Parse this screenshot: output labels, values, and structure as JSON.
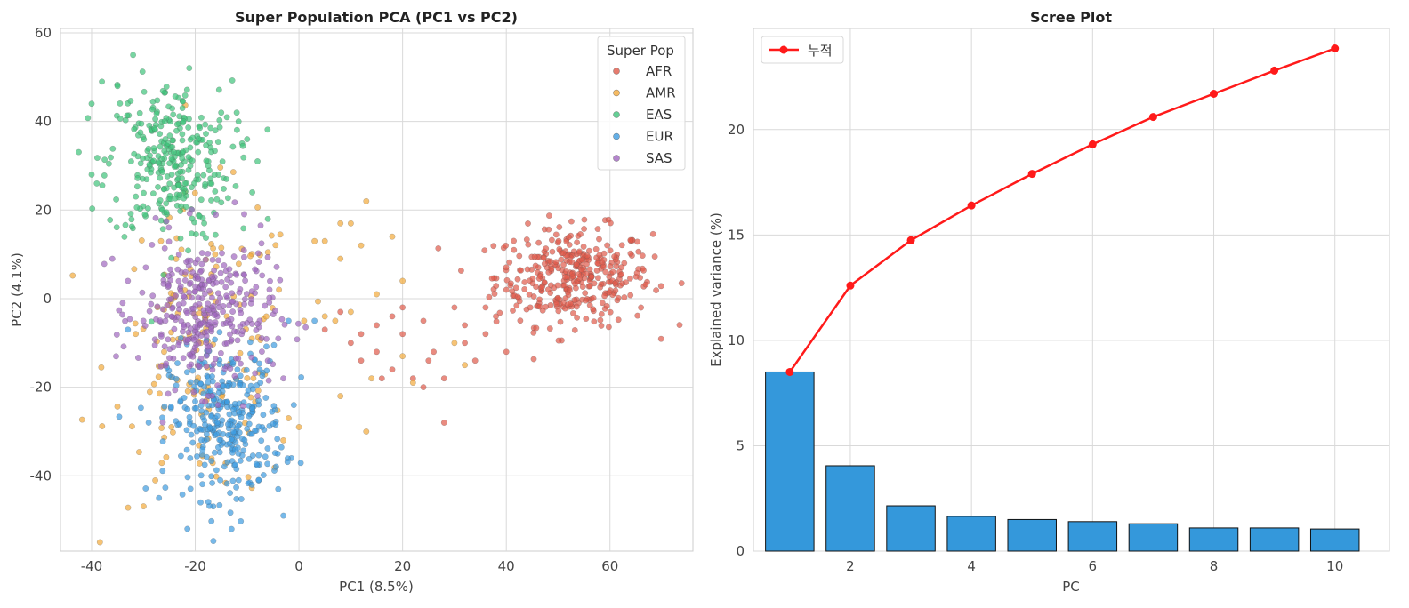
{
  "chart_data": [
    {
      "type": "scatter",
      "title": "Super Population PCA (PC1 vs PC2)",
      "xlabel": "PC1 (8.5%)",
      "ylabel": "PC2 (4.1%)",
      "xlim": [
        -46,
        76
      ],
      "ylim": [
        -57,
        61
      ],
      "xticks": [
        -40,
        -20,
        0,
        20,
        40,
        60
      ],
      "yticks": [
        -40,
        -20,
        0,
        20,
        40,
        60
      ],
      "grid": true,
      "legend_title": "Super Pop",
      "legend_position": "top-right",
      "series": [
        {
          "name": "AFR",
          "color": "#e05a4a",
          "center": [
            53,
            5
          ],
          "spread": [
            7.5,
            5.5
          ],
          "count": 360,
          "extra": [
            [
              5,
              -7
            ],
            [
              8,
              -3
            ],
            [
              10,
              -10
            ],
            [
              12,
              -14
            ],
            [
              15,
              -12
            ],
            [
              18,
              -16
            ],
            [
              20,
              -8
            ],
            [
              22,
              -18
            ],
            [
              24,
              -5
            ],
            [
              26,
              -12
            ],
            [
              28,
              -28
            ],
            [
              30,
              -2
            ],
            [
              32,
              -6
            ],
            [
              34,
              -14
            ],
            [
              36,
              -8
            ],
            [
              38,
              -4
            ],
            [
              40,
              -12
            ],
            [
              20,
              -2
            ],
            [
              15,
              -6
            ],
            [
              25,
              -14
            ],
            [
              18,
              -4
            ],
            [
              12,
              -8
            ],
            [
              28,
              -18
            ],
            [
              32,
              -10
            ],
            [
              36,
              -2
            ],
            [
              40,
              2
            ],
            [
              24,
              -20
            ],
            [
              16,
              -18
            ]
          ]
        },
        {
          "name": "AMR",
          "color": "#f2a93b",
          "center": [
            -18,
            -12
          ],
          "spread": [
            9,
            17
          ],
          "count": 150,
          "extra": [
            [
              13,
              22
            ],
            [
              10,
              17
            ],
            [
              8,
              17
            ],
            [
              3,
              13
            ],
            [
              5,
              13
            ],
            [
              8,
              9
            ],
            [
              12,
              12
            ],
            [
              18,
              14
            ],
            [
              20,
              4
            ],
            [
              15,
              1
            ],
            [
              10,
              -3
            ],
            [
              7,
              -5
            ],
            [
              1,
              -5
            ],
            [
              -2,
              -27
            ],
            [
              -3,
              -32
            ],
            [
              0,
              -29
            ],
            [
              5,
              -4
            ],
            [
              14,
              -18
            ],
            [
              22,
              -19
            ],
            [
              32,
              -15
            ],
            [
              30,
              -10
            ],
            [
              20,
              -13
            ],
            [
              13,
              -30
            ],
            [
              8,
              -22
            ]
          ]
        },
        {
          "name": "EAS",
          "color": "#3ec37a",
          "center": [
            -25,
            31
          ],
          "spread": [
            6,
            9
          ],
          "count": 300,
          "extra": [
            [
              -40,
              44
            ],
            [
              -38,
              49
            ],
            [
              -35,
              48
            ],
            [
              -32,
              55
            ],
            [
              -40,
              28
            ],
            [
              -39,
              26
            ],
            [
              -12,
              42
            ],
            [
              -10,
              36
            ],
            [
              -8,
              31
            ],
            [
              -6,
              18
            ],
            [
              -9,
              24
            ],
            [
              -15,
              42
            ]
          ]
        },
        {
          "name": "EUR",
          "color": "#3d9be0",
          "center": [
            -14,
            -28
          ],
          "spread": [
            5.5,
            8.5
          ],
          "count": 320,
          "extra": [
            [
              -3,
              -49
            ],
            [
              -13,
              -52
            ],
            [
              -27,
              -45
            ],
            [
              -29,
              -28
            ],
            [
              -4,
              -43
            ],
            [
              -2,
              -5
            ],
            [
              3,
              -5
            ],
            [
              -1,
              -24
            ],
            [
              -33,
              -7
            ]
          ]
        },
        {
          "name": "SAS",
          "color": "#a066bf",
          "center": [
            -18,
            -3
          ],
          "spread": [
            6.5,
            8.5
          ],
          "count": 330,
          "extra": [
            [
              -36,
              9
            ],
            [
              -34,
              -1
            ],
            [
              -33,
              4
            ],
            [
              -30,
              -5
            ],
            [
              -4,
              -9
            ],
            [
              -6,
              -14
            ],
            [
              -3,
              -18
            ],
            [
              -8,
              -22
            ]
          ]
        }
      ]
    },
    {
      "type": "bar",
      "title": "Scree Plot",
      "xlabel": "PC",
      "ylabel": "Explained variance (%)",
      "xlim": [
        0.4,
        10.9
      ],
      "ylim": [
        0,
        24.8
      ],
      "xticks": [
        2,
        4,
        6,
        8,
        10
      ],
      "yticks": [
        0,
        5,
        10,
        15,
        20
      ],
      "grid": true,
      "legend_position": "top-left",
      "categories": [
        1,
        2,
        3,
        4,
        5,
        6,
        7,
        8,
        9,
        10
      ],
      "values": [
        8.5,
        4.05,
        2.15,
        1.65,
        1.5,
        1.4,
        1.3,
        1.1,
        1.1,
        1.05
      ],
      "bar_color": "#3498db",
      "line_series": {
        "name": "누적",
        "color": "#ff1a1a",
        "values": [
          8.5,
          12.6,
          14.75,
          16.4,
          17.9,
          19.3,
          20.6,
          21.7,
          22.8,
          23.85
        ]
      }
    }
  ]
}
